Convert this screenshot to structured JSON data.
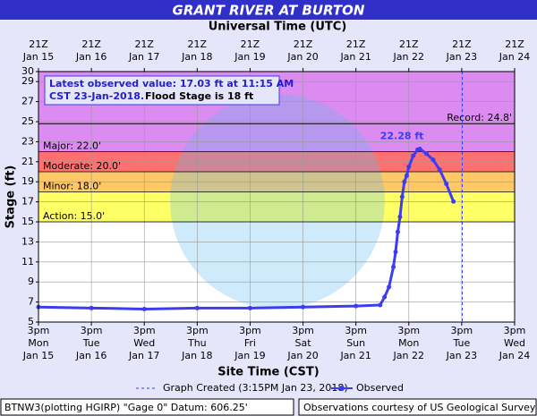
{
  "chart_data": {
    "type": "line",
    "title": "GRANT RIVER AT BURTON",
    "top_axis_label": "Universal Time (UTC)",
    "x_axis_label": "Site Time (CST)",
    "y_axis_label": "Stage (ft)",
    "xlim": [
      "Jan 15 3pm",
      "Jan 24 3pm"
    ],
    "xticks": [
      {
        "value": "Jan 15 3pm",
        "label": [
          "3pm",
          "Mon",
          "Jan 15"
        ]
      },
      {
        "value": "Jan 16 3pm",
        "label": [
          "3pm",
          "Tue",
          "Jan 16"
        ]
      },
      {
        "value": "Jan 17 3pm",
        "label": [
          "3pm",
          "Wed",
          "Jan 17"
        ]
      },
      {
        "value": "Jan 18 3pm",
        "label": [
          "3pm",
          "Thu",
          "Jan 18"
        ]
      },
      {
        "value": "Jan 19 3pm",
        "label": [
          "3pm",
          "Fri",
          "Jan 19"
        ]
      },
      {
        "value": "Jan 20 3pm",
        "label": [
          "3pm",
          "Sat",
          "Jan 20"
        ]
      },
      {
        "value": "Jan 21 3pm",
        "label": [
          "3pm",
          "Sun",
          "Jan 21"
        ]
      },
      {
        "value": "Jan 22 3pm",
        "label": [
          "3pm",
          "Mon",
          "Jan 22"
        ]
      },
      {
        "value": "Jan 23 3pm",
        "label": [
          "3pm",
          "Tue",
          "Jan 23"
        ]
      },
      {
        "value": "Jan 24 3pm",
        "label": [
          "3pm",
          "Wed",
          "Jan 24"
        ]
      }
    ],
    "top_xticks": [
      {
        "value": "Jan 15 3pm",
        "label": [
          "21Z",
          "Jan 15"
        ]
      },
      {
        "value": "Jan 16 3pm",
        "label": [
          "21Z",
          "Jan 16"
        ]
      },
      {
        "value": "Jan 17 3pm",
        "label": [
          "21Z",
          "Jan 17"
        ]
      },
      {
        "value": "Jan 18 3pm",
        "label": [
          "21Z",
          "Jan 18"
        ]
      },
      {
        "value": "Jan 19 3pm",
        "label": [
          "21Z",
          "Jan 19"
        ]
      },
      {
        "value": "Jan 20 3pm",
        "label": [
          "21Z",
          "Jan 20"
        ]
      },
      {
        "value": "Jan 21 3pm",
        "label": [
          "21Z",
          "Jan 21"
        ]
      },
      {
        "value": "Jan 22 3pm",
        "label": [
          "21Z",
          "Jan 22"
        ]
      },
      {
        "value": "Jan 23 3pm",
        "label": [
          "21Z",
          "Jan 23"
        ]
      },
      {
        "value": "Jan 24 3pm",
        "label": [
          "21Z",
          "Jan 24"
        ]
      }
    ],
    "ylim": [
      5,
      30
    ],
    "yticks": [
      5,
      7,
      9,
      11,
      13,
      15,
      17,
      19,
      21,
      23,
      25,
      27,
      29,
      30
    ],
    "grid": true,
    "flood_categories": [
      {
        "label": "Action: 15.0'",
        "value": 15,
        "color": "#ffff66"
      },
      {
        "label": "Minor: 18.0'",
        "value": 18,
        "color": "#ffc866"
      },
      {
        "label": "Moderate: 20.0'",
        "value": 20,
        "color": "#ff7070"
      },
      {
        "label": "Major: 22.0'",
        "value": 22,
        "color": "#dc8cf0"
      }
    ],
    "record": {
      "label": "Record: 24.8'",
      "value": 24.8
    },
    "peak": {
      "x": "Jan 22 8pm",
      "value": 22.28,
      "label": "22.28 ft"
    },
    "info": [
      "Latest observed value: 17.03 ft at 11:15 AM",
      "CST 23-Jan-2018.",
      "Flood Stage is 18 ft"
    ],
    "graph_created": {
      "x": "Jan 23 3:15pm",
      "label": "Graph Created (3:15PM Jan 23, 2018)"
    },
    "series": [
      {
        "name": "Observed",
        "color": "#3c3cf0",
        "x": [
          "Jan 15 3pm",
          "Jan 16 3pm",
          "Jan 17 3pm",
          "Jan 18 3pm",
          "Jan 19 3pm",
          "Jan 20 3pm",
          "Jan 21 3pm",
          "Jan 22 2am",
          "Jan 22 4am",
          "Jan 22 6am",
          "Jan 22 8am",
          "Jan 22 9am",
          "Jan 22 10am",
          "Jan 22 11am",
          "Jan 22 12pm",
          "Jan 22 1pm",
          "Jan 22 2pm",
          "Jan 22 3pm",
          "Jan 22 5pm",
          "Jan 22 7pm",
          "Jan 22 8pm",
          "Jan 22 11pm",
          "Jan 23 2am",
          "Jan 23 5am",
          "Jan 23 8am",
          "Jan 23 11:15am"
        ],
        "values": [
          6.5,
          6.4,
          6.3,
          6.4,
          6.4,
          6.5,
          6.6,
          6.7,
          7.5,
          8.5,
          10.5,
          12,
          14,
          15.5,
          17.5,
          19,
          19.6,
          20.5,
          21.6,
          22.2,
          22.28,
          21.8,
          21.2,
          20.2,
          18.8,
          17.03
        ]
      }
    ],
    "footer_left": "BTNW3(plotting HGIRP) \"Gage 0\" Datum: 606.25'",
    "footer_right": "Observations courtesy of US Geological Survey"
  }
}
